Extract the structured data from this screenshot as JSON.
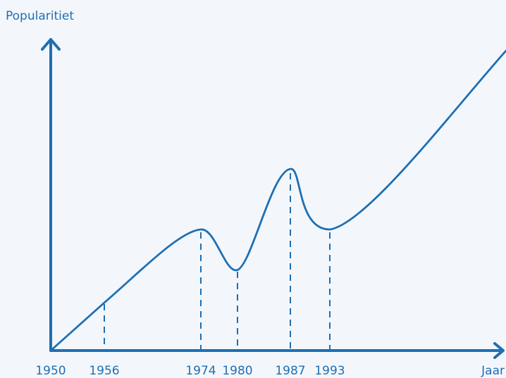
{
  "diagram": {
    "y_axis_label": "Popularitiet",
    "x_axis_label": "Jaar",
    "x_labels": [
      "1950",
      "1956",
      "1974",
      "1980",
      "1987",
      "1993"
    ]
  }
}
